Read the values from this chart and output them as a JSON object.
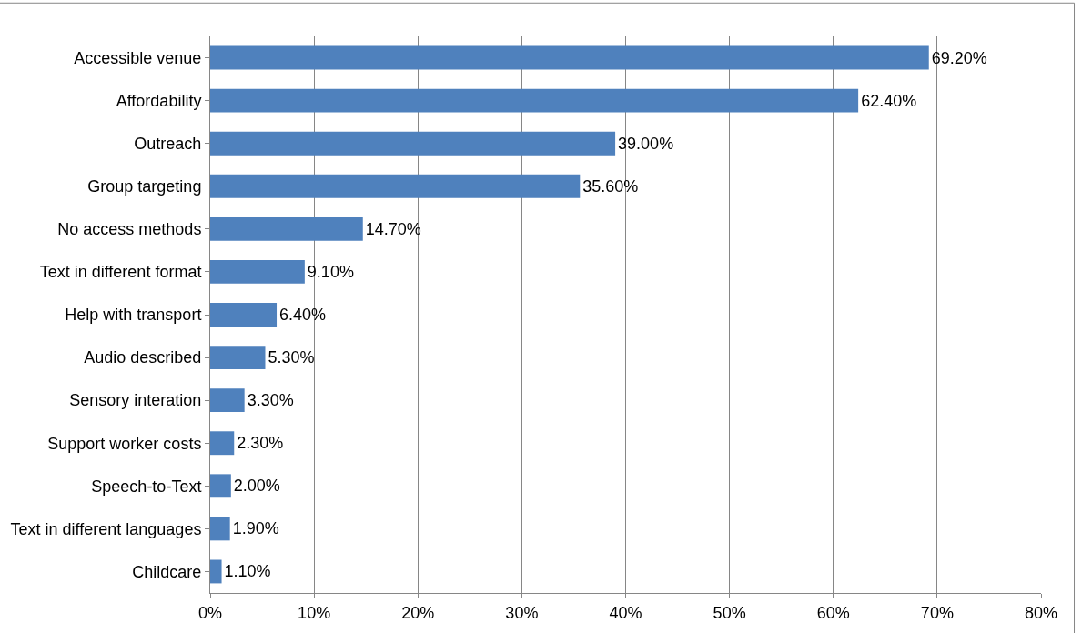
{
  "chart_data": {
    "type": "bar",
    "orientation": "horizontal",
    "color": "#4f81bd",
    "categories": [
      "Accessible venue",
      "Affordability",
      "Outreach",
      "Group targeting",
      "No access methods",
      "Text in different format",
      "Help with transport",
      "Audio described",
      "Sensory interation",
      "Support worker costs",
      "Speech-to-Text",
      "Text in different languages",
      "Childcare"
    ],
    "values": [
      69.2,
      62.4,
      39.0,
      35.6,
      14.7,
      9.1,
      6.4,
      5.3,
      3.3,
      2.3,
      2.0,
      1.9,
      1.1
    ],
    "value_labels": [
      "69.20%",
      "62.40%",
      "39.00%",
      "35.60%",
      "14.70%",
      "9.10%",
      "6.40%",
      "5.30%",
      "3.30%",
      "2.30%",
      "2.00%",
      "1.90%",
      "1.10%"
    ],
    "xlim": [
      0,
      80
    ],
    "xticks": [
      {
        "value": 0,
        "label": "0%"
      },
      {
        "value": 10,
        "label": "10%"
      },
      {
        "value": 20,
        "label": "20%"
      },
      {
        "value": 30,
        "label": "30%"
      },
      {
        "value": 40,
        "label": "40%"
      },
      {
        "value": 50,
        "label": "50%"
      },
      {
        "value": 60,
        "label": "60%"
      },
      {
        "value": 70,
        "label": "70%"
      },
      {
        "value": 80,
        "label": "80%"
      }
    ],
    "grid": "x",
    "legend": false
  }
}
